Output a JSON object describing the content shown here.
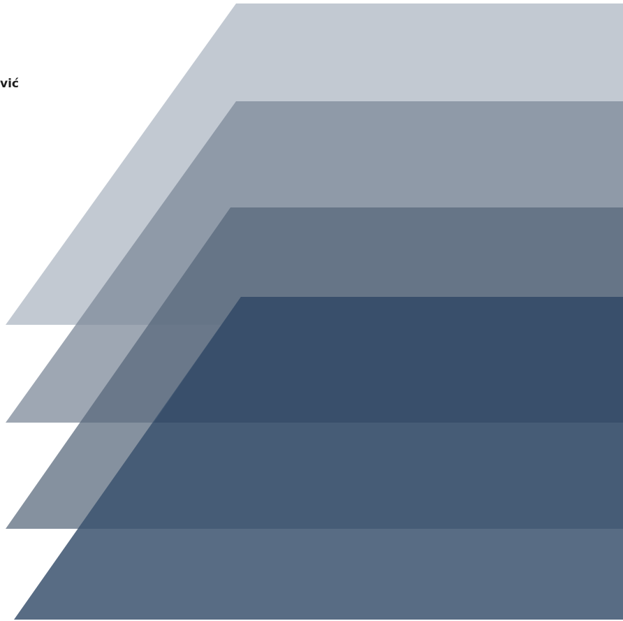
{
  "header": {
    "author_text": "vić"
  },
  "layers": [
    {
      "name": "layer-1",
      "color": "#a5b0bd",
      "opacity": 0.68
    },
    {
      "name": "layer-2",
      "color": "#7d8a99",
      "opacity": 0.75
    },
    {
      "name": "layer-3",
      "color": "#56677a",
      "opacity": 0.72
    },
    {
      "name": "layer-4",
      "color": "#1b2d45",
      "opacity": 0.72
    },
    {
      "name": "layer-5",
      "color": "#3b526e",
      "opacity": 0.85
    }
  ]
}
